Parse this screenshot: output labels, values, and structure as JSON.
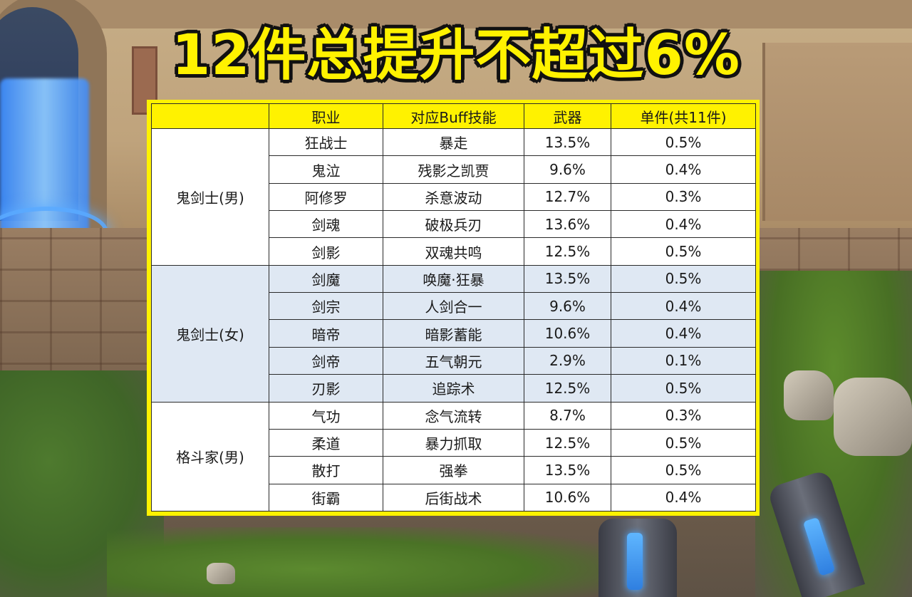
{
  "headline": "12件总提升不超过6%",
  "table": {
    "headers": [
      "",
      "职业",
      "对应Buff技能",
      "武器",
      "单件(共11件)"
    ],
    "groups": [
      {
        "name": "鬼剑士(男)",
        "rows": [
          {
            "job": "狂战士",
            "skill": "暴走",
            "weapon": "13.5%",
            "piece": "0.5%"
          },
          {
            "job": "鬼泣",
            "skill": "残影之凯贾",
            "weapon": "9.6%",
            "piece": "0.4%"
          },
          {
            "job": "阿修罗",
            "skill": "杀意波动",
            "weapon": "12.7%",
            "piece": "0.3%"
          },
          {
            "job": "剑魂",
            "skill": "破极兵刃",
            "weapon": "13.6%",
            "piece": "0.4%"
          },
          {
            "job": "剑影",
            "skill": "双魂共鸣",
            "weapon": "12.5%",
            "piece": "0.5%"
          }
        ]
      },
      {
        "name": "鬼剑士(女)",
        "rows": [
          {
            "job": "剑魔",
            "skill": "唤魔·狂暴",
            "weapon": "13.5%",
            "piece": "0.5%"
          },
          {
            "job": "剑宗",
            "skill": "人剑合一",
            "weapon": "9.6%",
            "piece": "0.4%"
          },
          {
            "job": "暗帝",
            "skill": "暗影蓄能",
            "weapon": "10.6%",
            "piece": "0.4%"
          },
          {
            "job": "剑帝",
            "skill": "五气朝元",
            "weapon": "2.9%",
            "piece": "0.1%"
          },
          {
            "job": "刃影",
            "skill": "追踪术",
            "weapon": "12.5%",
            "piece": "0.5%"
          }
        ]
      },
      {
        "name": "格斗家(男)",
        "rows": [
          {
            "job": "气功",
            "skill": "念气流转",
            "weapon": "8.7%",
            "piece": "0.3%"
          },
          {
            "job": "柔道",
            "skill": "暴力抓取",
            "weapon": "12.5%",
            "piece": "0.5%"
          },
          {
            "job": "散打",
            "skill": "强拳",
            "weapon": "13.5%",
            "piece": "0.5%"
          },
          {
            "job": "街霸",
            "skill": "后街战术",
            "weapon": "10.6%",
            "piece": "0.4%"
          }
        ]
      }
    ]
  }
}
